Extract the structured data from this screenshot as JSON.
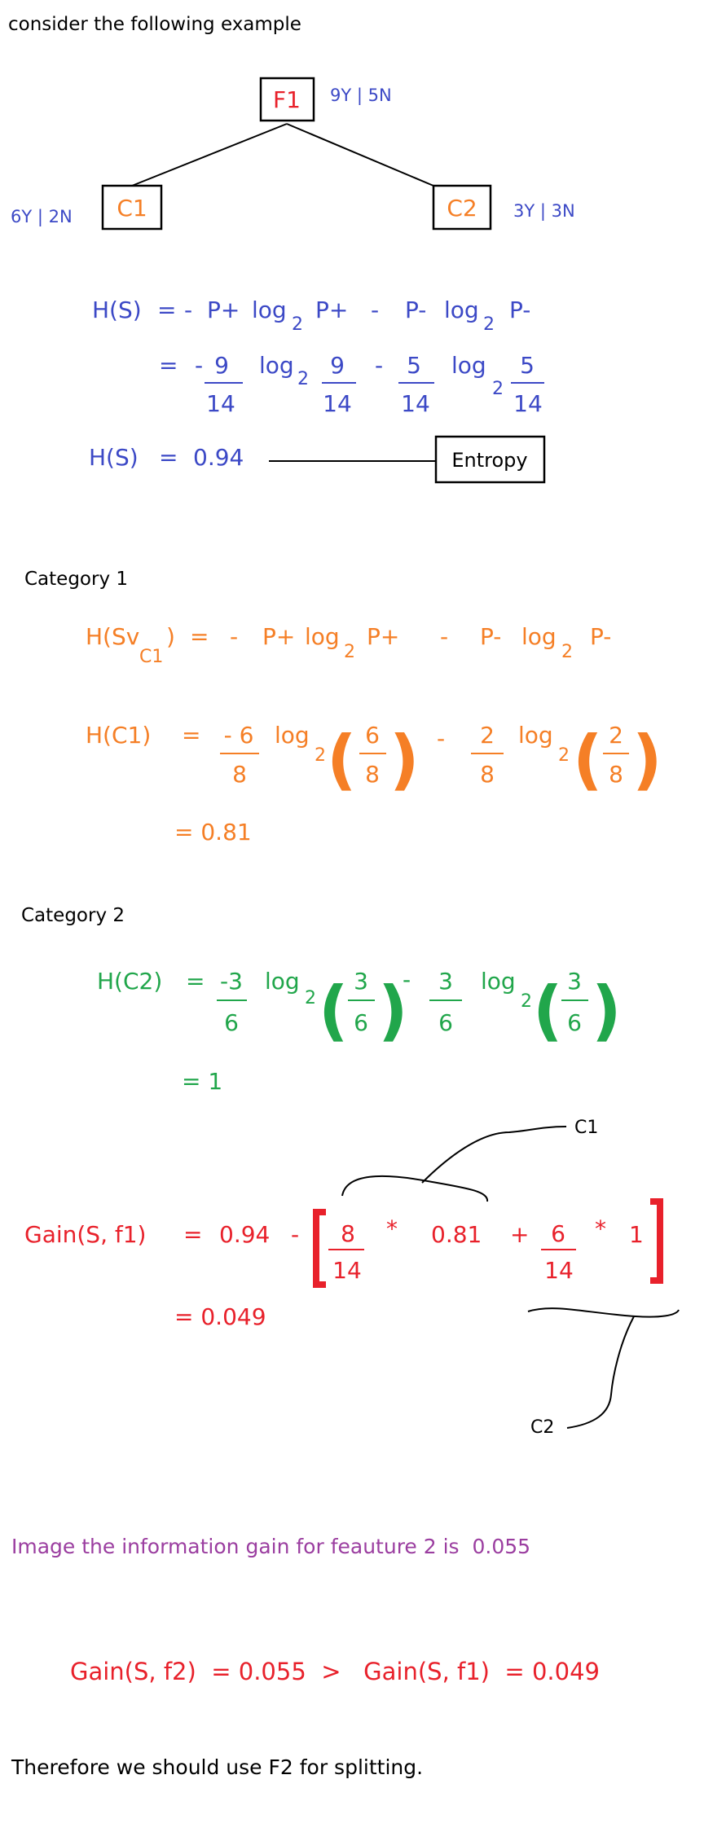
{
  "colors": {
    "black": "#000000",
    "red": "#e8212b",
    "blue": "#3c49c6",
    "orange": "#f57f26",
    "green": "#21a64b",
    "purple": "#9b3ea0",
    "node_orange": "#f57f26"
  },
  "intro": "consider the following example",
  "tree": {
    "root_label": "F1",
    "root_counts": "9Y | 5N",
    "left_label": "C1",
    "left_counts": "6Y | 2N",
    "right_label": "C2",
    "right_counts": "3Y | 3N"
  },
  "entropy": {
    "line1": {
      "lhs": "H(S)",
      "eq": "=",
      "minus1": "-",
      "p1": "P+",
      "log": "log",
      "sub": "2",
      "p1b": "P+",
      "minus2": "-",
      "p2": "P-",
      "log2": "log",
      "sub2": "2",
      "p2b": "P-"
    },
    "line2": {
      "eq": "=",
      "minus1": "-",
      "n1": "9",
      "d1": "14",
      "log": "log",
      "sub": "2",
      "n2": "9",
      "d2": "14",
      "minus2": "-",
      "n3": "5",
      "d3": "14",
      "log2": "log",
      "sub2": "2",
      "n4": "5",
      "d4": "14"
    },
    "line3": {
      "lhs": "H(S)",
      "eq": "=",
      "value": "0.94"
    },
    "box_label": "Entropy"
  },
  "category1": {
    "heading": "Category 1",
    "gen": {
      "lhs": "H(Sv",
      "lhs_sub": "C1",
      "lhs_close": ")",
      "eq": "=",
      "minus1": "-",
      "p1": "P+",
      "log": "log",
      "sub": "2",
      "p1b": "P+",
      "minus2": "-",
      "p2": "P-",
      "log2": "log",
      "sub2": "2",
      "p2b": "P-"
    },
    "calc": {
      "lhs": "H(C1)",
      "eq": "=",
      "n1": "- 6",
      "d1": "8",
      "log": "log",
      "sub": "2",
      "pn1": "6",
      "pd1": "8",
      "minus": "-",
      "n2": "2",
      "d2": "8",
      "log2": "log",
      "sub2": "2",
      "pn2": "2",
      "pd2": "8"
    },
    "result": "= 0.81"
  },
  "category2": {
    "heading": "Category 2",
    "calc": {
      "lhs": "H(C2)",
      "eq": "=",
      "n1": "-3",
      "d1": "6",
      "log": "log",
      "sub": "2",
      "pn1": "3",
      "pd1": "6",
      "minus": "-",
      "n2": "3",
      "d2": "6",
      "log2": "log",
      "sub2": "2",
      "pn2": "3",
      "pd2": "6"
    },
    "result": "= 1"
  },
  "gain": {
    "lhs": "Gain(S, f1)",
    "eq": "=",
    "base": "0.94",
    "minus": "-",
    "n1": "8",
    "d1": "14",
    "times1": "*",
    "v1": "0.81",
    "plus": "+",
    "n2": "6",
    "d2": "14",
    "times2": "*",
    "v2": "1",
    "result": "= 0.049",
    "annot_c1": "C1",
    "annot_c2": "C2"
  },
  "note": {
    "text": "Image the information gain for feauture 2 is  0.055"
  },
  "comparison": {
    "text": "Gain(S, f2)  = 0.055  >   Gain(S, f1)  = 0.049"
  },
  "conclusion": {
    "text": "Therefore we should use F2 for splitting."
  }
}
